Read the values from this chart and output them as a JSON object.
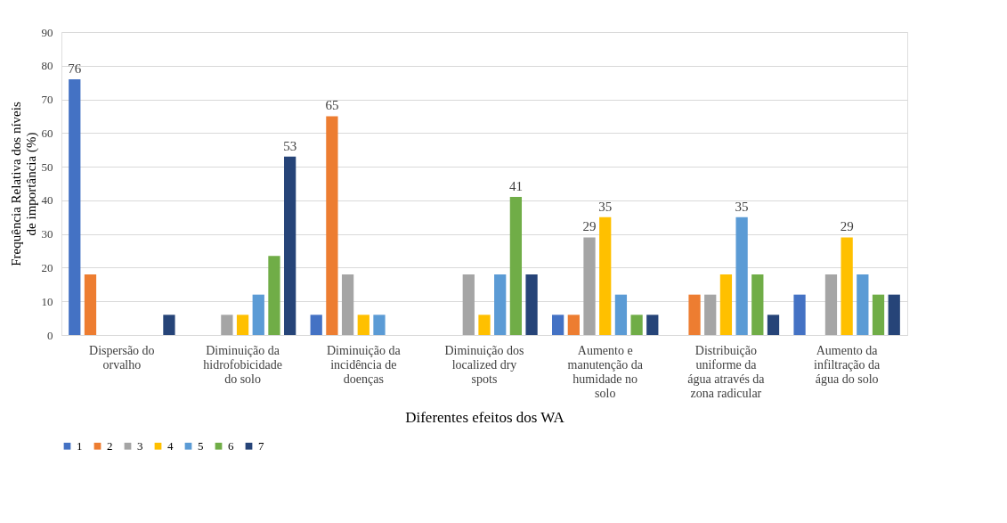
{
  "chart_data": {
    "type": "bar",
    "xlabel": "Diferentes efeitos dos WA",
    "ylabel": "Frequência Relativa dos níveis de importância (%)",
    "categories": [
      "Dispersão do orvalho",
      "Diminuição da hidrofobicidade do solo",
      "Diminuição da incidência de doenças",
      "Diminuição dos localized dry spots",
      "Aumento e manutenção da humidade no solo",
      "Distribuição uniforme da água através da zona radicular",
      "Aumento da infiltração da água do solo"
    ],
    "series": [
      {
        "name": "1",
        "color": "#4472c4",
        "values": [
          76,
          null,
          6,
          null,
          6,
          null,
          12
        ],
        "value_labels": [
          "76",
          null,
          null,
          null,
          null,
          null,
          null
        ]
      },
      {
        "name": "2",
        "color": "#ed7d31",
        "values": [
          18,
          null,
          65,
          null,
          6,
          12,
          null
        ],
        "value_labels": [
          null,
          null,
          "65",
          null,
          null,
          null,
          null
        ]
      },
      {
        "name": "3",
        "color": "#a5a5a5",
        "values": [
          null,
          6,
          18,
          18,
          29,
          12,
          18
        ],
        "value_labels": [
          null,
          null,
          null,
          null,
          "29",
          null,
          null
        ]
      },
      {
        "name": "4",
        "color": "#ffc000",
        "values": [
          null,
          6,
          6,
          6,
          35,
          18,
          29
        ],
        "value_labels": [
          null,
          null,
          null,
          null,
          "35",
          null,
          "29"
        ]
      },
      {
        "name": "5",
        "color": "#5b9bd5",
        "values": [
          null,
          12,
          6,
          18,
          12,
          35,
          18
        ],
        "value_labels": [
          null,
          null,
          null,
          null,
          null,
          "35",
          null
        ]
      },
      {
        "name": "6",
        "color": "#70ad47",
        "values": [
          null,
          23.5,
          null,
          41,
          6,
          18,
          12
        ],
        "value_labels": [
          null,
          null,
          null,
          "41",
          null,
          null,
          null
        ]
      },
      {
        "name": "7",
        "color": "#264478",
        "values": [
          6,
          53,
          null,
          18,
          6,
          6,
          12
        ],
        "value_labels": [
          null,
          "53",
          null,
          null,
          null,
          null,
          null
        ]
      }
    ],
    "ylim": [
      0,
      90
    ],
    "yticks": [
      0,
      10,
      20,
      30,
      40,
      50,
      60,
      70,
      80,
      90
    ],
    "grid": "y",
    "legend": "bottom"
  }
}
